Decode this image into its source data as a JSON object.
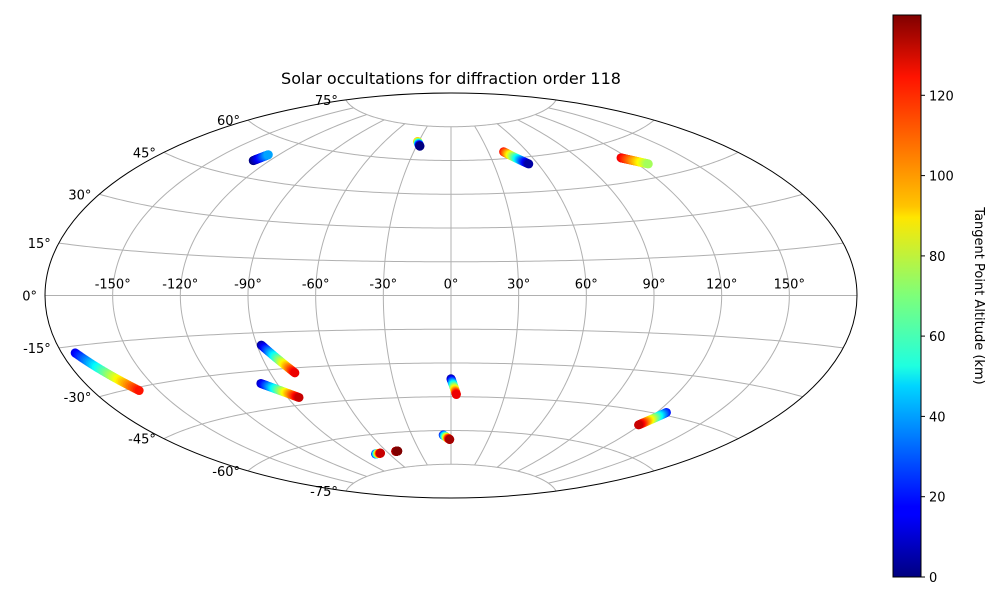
{
  "chart_data": {
    "type": "scatter",
    "projection": "aitoff",
    "title": "Solar occultations for diffraction order 118",
    "xlabel": "",
    "ylabel": "",
    "grid": true,
    "lon_ticks": [
      "-150°",
      "-120°",
      "-90°",
      "-60°",
      "-30°",
      "0°",
      "30°",
      "60°",
      "90°",
      "120°",
      "150°"
    ],
    "lat_ticks": [
      "-75°",
      "-60°",
      "-45°",
      "-30°",
      "-15°",
      "0°",
      "15°",
      "30°",
      "45°",
      "60°",
      "75°"
    ],
    "colorbar": {
      "label": "Tangent Point Altitude (km)",
      "colormap": "jet",
      "range": [
        0,
        140
      ],
      "ticks": [
        "0",
        "20",
        "40",
        "60",
        "80",
        "100",
        "120"
      ]
    },
    "series": [
      {
        "lon_start": -129,
        "lat_start": 51,
        "lon_end": -126,
        "lat_end": 54,
        "alt_start": 0,
        "alt_end": 40
      },
      {
        "lon_start": -31,
        "lat_start": 68,
        "lon_end": -27,
        "lat_end": 66,
        "alt_start": 100,
        "alt_end": 0
      },
      {
        "lon_start": 42,
        "lat_start": 63,
        "lon_end": 54,
        "lat_end": 57,
        "alt_start": 120,
        "alt_end": 5
      },
      {
        "lon_start": 116,
        "lat_start": 54,
        "lon_end": 126,
        "lat_end": 50,
        "alt_start": 125,
        "alt_end": 75
      },
      {
        "lon_start": -174,
        "lat_start": -17,
        "lon_end": -159,
        "lat_end": -31,
        "alt_start": 15,
        "alt_end": 120
      },
      {
        "lon_start": -88,
        "lat_start": -20,
        "lon_end": -78,
        "lat_end": -32,
        "alt_start": 5,
        "alt_end": 125
      },
      {
        "lon_start": -98,
        "lat_start": -35,
        "lon_end": -84,
        "lat_end": -42,
        "alt_start": 10,
        "alt_end": 130
      },
      {
        "lon_start": 0,
        "lat_start": -37,
        "lon_end": 3,
        "lat_end": -44,
        "alt_start": 5,
        "alt_end": 125
      },
      {
        "lon_start": 125,
        "lat_start": -44,
        "lon_end": 119,
        "lat_end": -50,
        "alt_start": 20,
        "alt_end": 130
      },
      {
        "lon_start": -72,
        "lat_start": -68,
        "lon_end": -67,
        "lat_end": -68,
        "alt_start": 20,
        "alt_end": 130
      },
      {
        "lon_start": -52,
        "lat_start": -68,
        "lon_end": -50,
        "lat_end": -68,
        "alt_start": 130,
        "alt_end": 140
      },
      {
        "lon_start": -6,
        "lat_start": -62,
        "lon_end": -1,
        "lat_end": -64,
        "alt_start": 20,
        "alt_end": 135
      }
    ]
  }
}
